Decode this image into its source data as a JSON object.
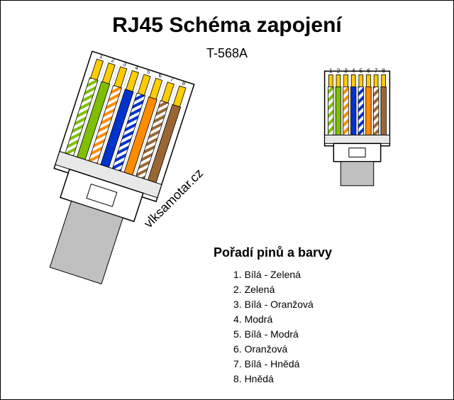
{
  "title": "RJ45 Schéma zapojení",
  "subtitle": "T-568A",
  "watermark": "vlksamotar.cz",
  "legend_title": "Pořadí pinů a barvy",
  "legend": [
    "1. Bílá - Zelená",
    "2. Zelená",
    "3. Bílá - Oranžová",
    "4. Modrá",
    "5. Bílá - Modrá",
    "6. Oranžová",
    "7. Bílá - Hnědá",
    "8. Hnědá"
  ],
  "connector": {
    "pin_labels": [
      "1",
      "2",
      "3",
      "4",
      "5",
      "6",
      "7",
      "8"
    ],
    "wire_colors_solid": [
      "#7fbf00",
      "#7fbf00",
      "#ff8c00",
      "#0033cc",
      "#0033cc",
      "#ff8c00",
      "#996633",
      "#996633"
    ],
    "wire_is_striped": [
      true,
      false,
      true,
      false,
      true,
      false,
      true,
      false
    ],
    "wire_stripe_base": "#ffffff",
    "gold_pin_color": "#ffcc00",
    "body_fill": "#ffffff",
    "body_stroke": "#000000",
    "cable_fill": "#c0c0c0",
    "separator_fill": "#e8e8e8"
  },
  "left_scale": 1.4,
  "right_scale": 0.85
}
